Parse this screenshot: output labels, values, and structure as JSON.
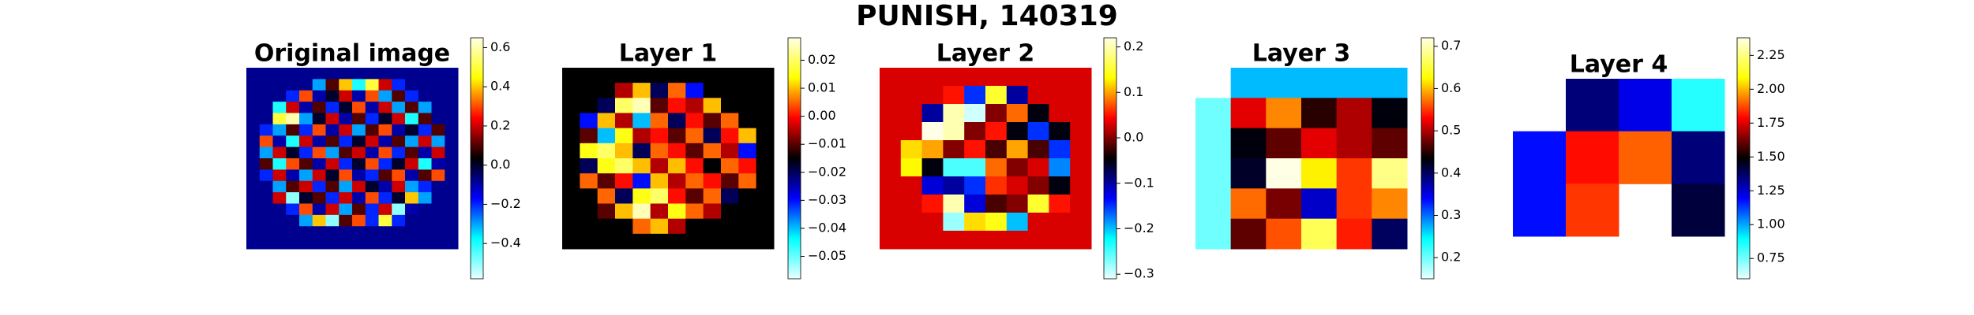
{
  "title": "PUNISH, 140319",
  "chart_data": [
    {
      "type": "heatmap",
      "title": "Original image",
      "colormap": [
        "#eaffff",
        "#00ffff",
        "#0000ff",
        "#000000",
        "#ff0000",
        "#ffff00",
        "#ffffe6"
      ],
      "zlim": [
        -0.58,
        0.65
      ],
      "zticks": [
        0.6,
        0.4,
        0.2,
        {
          "value": 0,
          "label": "0.0"
        },
        {
          "value": -0.2,
          "label": "−0.2"
        },
        {
          "value": -0.4,
          "label": "−0.4"
        }
      ],
      "z": [
        [
          -0.08,
          -0.08,
          -0.08,
          -0.08,
          -0.08,
          -0.08,
          -0.08,
          -0.08,
          -0.08,
          -0.08,
          -0.08,
          -0.08,
          -0.08,
          -0.08,
          -0.08,
          -0.08
        ],
        [
          -0.08,
          -0.08,
          -0.08,
          -0.08,
          -0.08,
          -0.3,
          0.1,
          0.4,
          -0.4,
          0.5,
          0.2,
          -0.2,
          -0.08,
          -0.08,
          -0.08,
          -0.08
        ],
        [
          -0.08,
          -0.08,
          -0.08,
          -0.2,
          0.3,
          -0.1,
          0.0,
          0.2,
          -0.1,
          0.3,
          -0.3,
          0.1,
          -0.2,
          -0.08,
          -0.08,
          -0.08
        ],
        [
          -0.08,
          -0.08,
          -0.4,
          0.2,
          -0.1,
          0.1,
          -0.2,
          0.0,
          0.3,
          -0.1,
          0.2,
          -0.3,
          0.1,
          -0.3,
          -0.08,
          -0.08
        ],
        [
          -0.08,
          -0.08,
          0.5,
          0.6,
          -0.3,
          0.0,
          0.2,
          -0.1,
          0.1,
          -0.2,
          0.0,
          0.2,
          -0.4,
          0.1,
          -0.08,
          -0.08
        ],
        [
          -0.08,
          -0.2,
          -0.3,
          0.1,
          -0.2,
          0.3,
          -0.1,
          0.2,
          -0.3,
          0.1,
          0.3,
          -0.1,
          0.0,
          -0.2,
          0.1,
          -0.08
        ],
        [
          -0.08,
          0.3,
          -0.1,
          -0.4,
          0.2,
          -0.1,
          0.1,
          -0.2,
          0.0,
          0.2,
          -0.1,
          0.1,
          -0.3,
          0.2,
          -0.3,
          -0.08
        ],
        [
          -0.08,
          -0.3,
          0.2,
          0.0,
          -0.2,
          0.3,
          -0.3,
          0.1,
          0.2,
          -0.1,
          0.3,
          -0.2,
          0.1,
          -0.1,
          0.2,
          -0.08
        ],
        [
          -0.08,
          0.1,
          -0.4,
          0.3,
          0.1,
          -0.1,
          0.2,
          -0.2,
          0.0,
          0.3,
          -0.2,
          0.0,
          0.2,
          -0.4,
          -0.1,
          -0.08
        ],
        [
          -0.08,
          -0.2,
          0.2,
          -0.1,
          -0.3,
          0.2,
          0.0,
          0.3,
          -0.1,
          -0.2,
          0.1,
          0.3,
          -0.1,
          0.1,
          0.3,
          -0.08
        ],
        [
          -0.08,
          -0.08,
          -0.3,
          0.1,
          0.2,
          -0.2,
          0.1,
          -0.3,
          0.2,
          0.0,
          -0.1,
          0.2,
          -0.3,
          -0.2,
          -0.08,
          -0.08
        ],
        [
          -0.08,
          -0.08,
          0.2,
          -0.5,
          0.0,
          0.1,
          -0.2,
          0.2,
          -0.1,
          0.3,
          -0.2,
          0.0,
          0.4,
          -0.3,
          -0.08,
          -0.08
        ],
        [
          -0.08,
          -0.08,
          -0.08,
          -0.2,
          0.3,
          -0.1,
          0.2,
          -0.3,
          0.1,
          -0.2,
          0.2,
          -0.5,
          -0.1,
          -0.08,
          -0.08,
          -0.08
        ],
        [
          -0.08,
          -0.08,
          -0.08,
          -0.08,
          -0.3,
          0.4,
          -0.5,
          0.1,
          0.3,
          -0.2,
          0.5,
          -0.2,
          -0.08,
          -0.08,
          -0.08,
          -0.08
        ],
        [
          -0.08,
          -0.08,
          -0.08,
          -0.08,
          -0.08,
          -0.08,
          -0.08,
          -0.08,
          -0.08,
          -0.08,
          -0.08,
          -0.08,
          -0.08,
          -0.08,
          -0.08,
          -0.08
        ],
        [
          -0.08,
          -0.08,
          -0.08,
          -0.08,
          -0.08,
          -0.08,
          -0.08,
          -0.08,
          -0.08,
          -0.08,
          -0.08,
          -0.08,
          -0.08,
          -0.08,
          -0.08,
          -0.08
        ]
      ]
    },
    {
      "type": "heatmap",
      "title": "Layer 1",
      "colormap": [
        "#eaffff",
        "#00ffff",
        "#0000ff",
        "#000000",
        "#ff0000",
        "#ffff00",
        "#ffffe6"
      ],
      "zlim": [
        -0.058,
        0.028
      ],
      "zticks": [
        0.02,
        0.01,
        {
          "value": 0,
          "label": "0.00"
        },
        {
          "value": -0.01,
          "label": "−0.01"
        },
        {
          "value": -0.02,
          "label": "−0.02"
        },
        {
          "value": -0.03,
          "label": "−0.03"
        },
        {
          "value": -0.04,
          "label": "−0.04"
        },
        {
          "value": -0.05,
          "label": "−0.05"
        }
      ],
      "z": [
        [
          -0.015,
          -0.015,
          -0.015,
          -0.015,
          -0.015,
          -0.015,
          -0.015,
          -0.015,
          -0.015,
          -0.015,
          -0.015,
          -0.015
        ],
        [
          -0.015,
          -0.015,
          -0.015,
          -0.005,
          0.01,
          -0.02,
          0.005,
          -0.03,
          -0.015,
          -0.015,
          -0.015,
          -0.015
        ],
        [
          -0.015,
          -0.015,
          -0.02,
          0.02,
          0.025,
          -0.01,
          0.0,
          -0.005,
          0.01,
          -0.015,
          -0.015,
          -0.015
        ],
        [
          -0.015,
          -0.03,
          0.01,
          -0.005,
          -0.04,
          0.005,
          -0.02,
          0.0,
          -0.01,
          0.005,
          -0.015,
          -0.015
        ],
        [
          -0.015,
          -0.01,
          -0.04,
          0.015,
          -0.005,
          0.0,
          -0.01,
          0.005,
          -0.02,
          0.0,
          0.01,
          -0.015
        ],
        [
          -0.015,
          0.015,
          0.02,
          0.01,
          -0.02,
          0.005,
          0.0,
          -0.01,
          0.005,
          -0.005,
          -0.03,
          -0.015
        ],
        [
          -0.015,
          -0.02,
          0.015,
          0.02,
          0.01,
          -0.005,
          0.01,
          0.0,
          -0.015,
          0.005,
          0.0,
          -0.015
        ],
        [
          -0.015,
          0.005,
          -0.01,
          0.0,
          -0.03,
          0.01,
          -0.005,
          0.005,
          0.0,
          -0.01,
          0.005,
          -0.015
        ],
        [
          -0.015,
          -0.015,
          0.005,
          -0.02,
          0.015,
          0.02,
          0.0,
          -0.01,
          0.005,
          -0.02,
          -0.015,
          -0.015
        ],
        [
          -0.015,
          -0.015,
          -0.01,
          0.01,
          0.025,
          -0.005,
          0.015,
          0.005,
          -0.005,
          -0.015,
          -0.015,
          -0.015
        ],
        [
          -0.015,
          -0.015,
          -0.015,
          -0.015,
          0.005,
          0.01,
          -0.005,
          -0.015,
          -0.015,
          -0.015,
          -0.015,
          -0.015
        ],
        [
          -0.015,
          -0.015,
          -0.015,
          -0.015,
          -0.015,
          -0.015,
          -0.015,
          -0.015,
          -0.015,
          -0.015,
          -0.015,
          -0.015
        ]
      ]
    },
    {
      "type": "heatmap",
      "title": "Layer 2",
      "colormap": [
        "#eaffff",
        "#00ffff",
        "#0000ff",
        "#000000",
        "#ff0000",
        "#ffff00",
        "#ffffe6"
      ],
      "zlim": [
        -0.31,
        0.22
      ],
      "zticks": [
        0.2,
        0.1,
        {
          "value": 0,
          "label": "0.0"
        },
        {
          "value": -0.1,
          "label": "−0.1"
        },
        {
          "value": -0.2,
          "label": "−0.2"
        },
        {
          "value": -0.3,
          "label": "−0.3"
        }
      ],
      "z": [
        [
          0.03,
          0.03,
          0.03,
          0.03,
          0.03,
          0.03,
          0.03,
          0.03,
          0.03,
          0.03
        ],
        [
          0.03,
          0.03,
          0.03,
          0.05,
          -0.15,
          0.15,
          -0.1,
          0.03,
          0.03,
          0.03
        ],
        [
          0.03,
          0.03,
          -0.1,
          0.2,
          -0.3,
          0.0,
          0.08,
          -0.05,
          0.03,
          0.03
        ],
        [
          0.03,
          0.03,
          0.22,
          0.2,
          0.0,
          0.05,
          -0.05,
          -0.15,
          -0.05,
          0.03
        ],
        [
          0.03,
          0.12,
          0.1,
          0.0,
          0.05,
          -0.02,
          0.1,
          -0.02,
          -0.15,
          0.03
        ],
        [
          0.03,
          0.13,
          -0.05,
          -0.25,
          -0.25,
          0.08,
          0.0,
          0.03,
          -0.18,
          0.03
        ],
        [
          0.03,
          0.03,
          -0.12,
          -0.1,
          -0.15,
          0.06,
          0.03,
          0.0,
          -0.05,
          0.03
        ],
        [
          0.03,
          0.03,
          0.05,
          0.2,
          -0.12,
          -0.02,
          0.0,
          0.15,
          0.05,
          0.03
        ],
        [
          0.03,
          0.03,
          0.03,
          -0.28,
          0.12,
          0.14,
          -0.2,
          0.03,
          0.03,
          0.03
        ],
        [
          0.03,
          0.03,
          0.03,
          0.03,
          0.03,
          0.03,
          0.03,
          0.03,
          0.03,
          0.03
        ]
      ]
    },
    {
      "type": "heatmap",
      "title": "Layer 3",
      "colormap": [
        "#eaffff",
        "#00ffff",
        "#0000ff",
        "#000000",
        "#ff0000",
        "#ffff00",
        "#ffffe6"
      ],
      "zlim": [
        0.15,
        0.72
      ],
      "zticks": [
        0.7,
        0.6,
        0.5,
        0.4,
        0.3,
        0.2
      ],
      "z": [
        [
          null,
          0.27,
          0.27,
          0.27,
          0.27,
          0.27
        ],
        [
          0.2,
          0.52,
          0.58,
          0.45,
          0.5,
          0.43
        ],
        [
          0.2,
          0.43,
          0.47,
          0.52,
          0.5,
          0.47
        ],
        [
          0.2,
          0.42,
          0.72,
          0.62,
          0.55,
          0.68
        ],
        [
          0.2,
          0.57,
          0.48,
          0.36,
          0.55,
          0.58
        ],
        [
          0.2,
          0.47,
          0.56,
          0.66,
          0.54,
          0.4
        ]
      ]
    },
    {
      "type": "heatmap",
      "title": "Layer 4",
      "colormap": [
        "#eaffff",
        "#00ffff",
        "#0000ff",
        "#000000",
        "#ff0000",
        "#ffff00",
        "#ffffe6"
      ],
      "zlim": [
        0.6,
        2.38
      ],
      "zticks": [
        2.25,
        {
          "value": 2,
          "label": "2.00"
        },
        1.75,
        {
          "value": 1.5,
          "label": "1.50"
        },
        1.25,
        {
          "value": 1,
          "label": "1.00"
        },
        0.75
      ],
      "z": [
        [
          null,
          1.35,
          1.22,
          0.85
        ],
        [
          1.18,
          1.8,
          1.9,
          1.35
        ],
        [
          1.18,
          1.85,
          null,
          1.42
        ]
      ]
    }
  ]
}
